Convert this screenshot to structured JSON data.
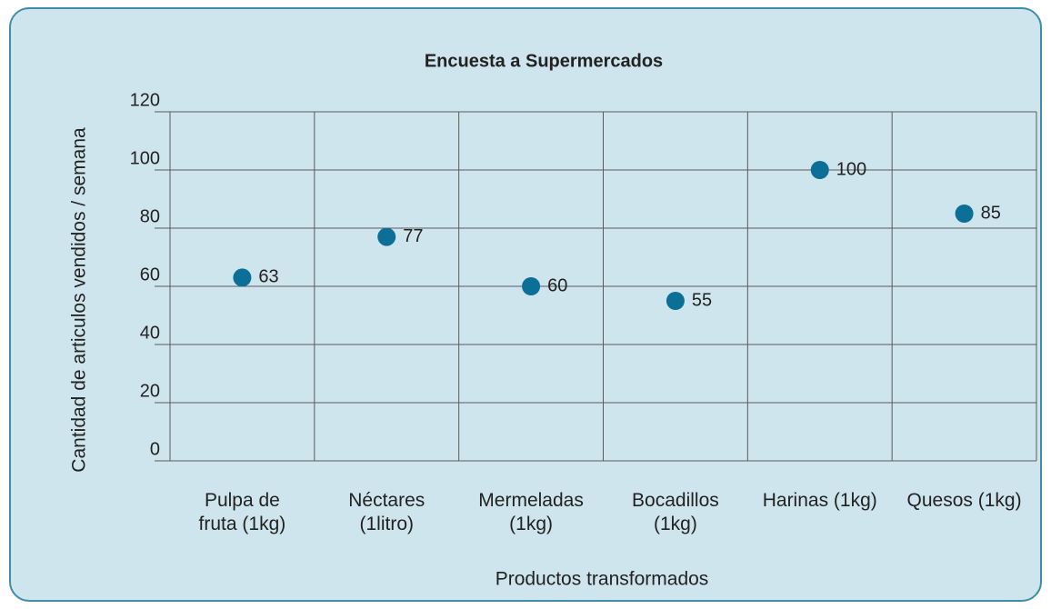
{
  "chart_data": {
    "type": "scatter",
    "title": "Encuesta a Supermercados",
    "x_label": "Productos transformados",
    "y_label": "Cantidad de articulos vendidos / semana",
    "categories": [
      "Pulpa de fruta (1kg)",
      "Néctares (1litro)",
      "Mermeladas (1kg)",
      "Bocadillos (1kg)",
      "Harinas (1kg)",
      "Quesos (1kg)"
    ],
    "values": [
      63,
      77,
      60,
      55,
      100,
      85
    ],
    "color": "#0b6f97",
    "ylim": [
      0,
      120
    ],
    "yticks": [
      0,
      20,
      40,
      60,
      80,
      100,
      120
    ],
    "grid": true
  }
}
